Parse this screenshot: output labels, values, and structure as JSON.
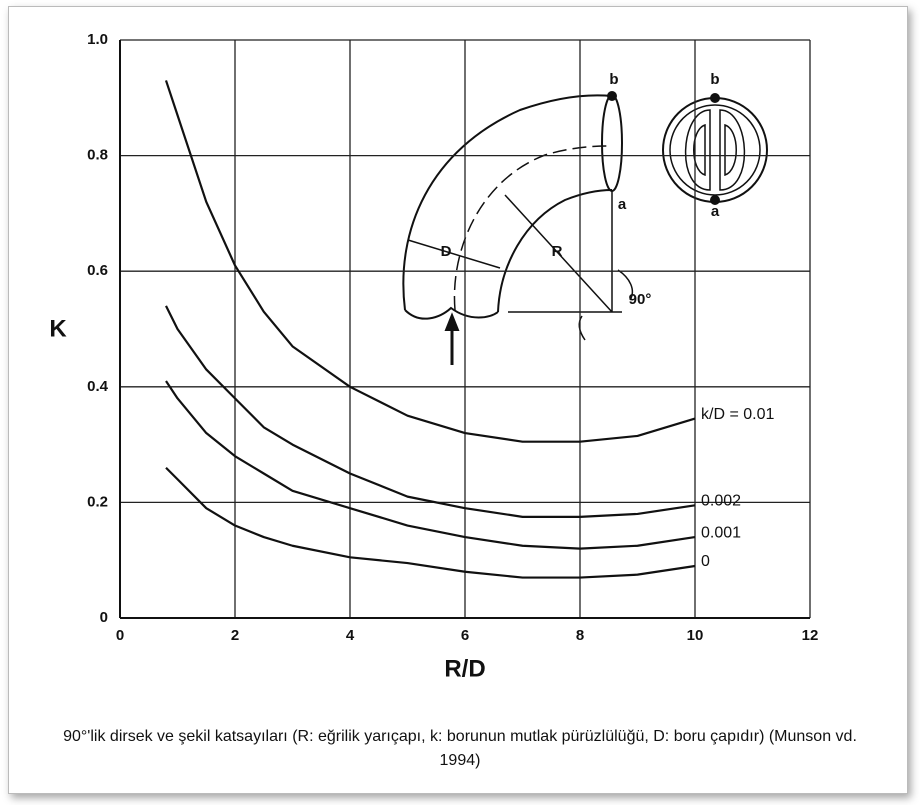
{
  "chart_data": {
    "type": "line",
    "xlabel": "R/D",
    "ylabel": "K",
    "x": [
      0.8,
      1,
      1.5,
      2,
      2.5,
      3,
      4,
      5,
      6,
      7,
      8,
      9,
      10
    ],
    "series": [
      {
        "name": "k/D = 0.01",
        "color": "#111111",
        "values": [
          0.93,
          0.87,
          0.72,
          0.61,
          0.53,
          0.47,
          0.4,
          0.35,
          0.32,
          0.305,
          0.305,
          0.315,
          0.345
        ]
      },
      {
        "name": "0.002",
        "color": "#111111",
        "values": [
          0.54,
          0.5,
          0.43,
          0.38,
          0.33,
          0.3,
          0.25,
          0.21,
          0.19,
          0.175,
          0.175,
          0.18,
          0.195
        ]
      },
      {
        "name": "0.001",
        "color": "#111111",
        "values": [
          0.41,
          0.38,
          0.32,
          0.28,
          0.25,
          0.22,
          0.19,
          0.16,
          0.14,
          0.125,
          0.12,
          0.125,
          0.14
        ]
      },
      {
        "name": "0",
        "color": "#111111",
        "values": [
          0.26,
          0.24,
          0.19,
          0.16,
          0.14,
          0.125,
          0.105,
          0.095,
          0.08,
          0.07,
          0.07,
          0.075,
          0.09
        ]
      }
    ],
    "xlim": [
      0,
      12
    ],
    "xticks": [
      0,
      2,
      4,
      6,
      8,
      10,
      12
    ],
    "ylim": [
      0,
      1
    ],
    "yticks": [
      0,
      0.2,
      0.4,
      0.6,
      0.8,
      {
        "value": 1,
        "label": "1.0"
      }
    ],
    "grid": true,
    "annotations": [
      "b",
      "a",
      "D",
      "R",
      "90°",
      "b",
      "a"
    ]
  },
  "caption": "90°'lik dirsek ve şekil katsayıları (R: eğrilik yarıçapı, k: borunun mutlak pürüzlülüğü, D: boru çapıdır) (Munson vd. 1994)"
}
